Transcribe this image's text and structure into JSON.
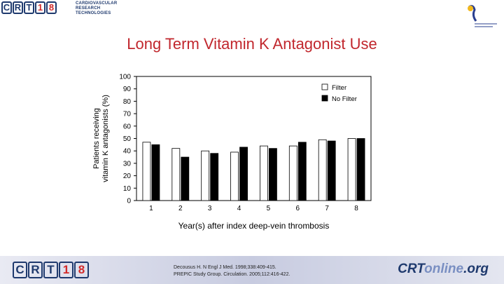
{
  "header": {
    "logo_letters": [
      "C",
      "R",
      "T",
      "1",
      "8"
    ],
    "org_lines": [
      "CARDIOVASCULAR",
      "RESEARCH",
      "TECHNOLOGIES"
    ]
  },
  "slide": {
    "title": "Long Term Vitamin K Antagonist Use"
  },
  "chart_data": {
    "type": "bar",
    "categories": [
      "1",
      "2",
      "3",
      "4",
      "5",
      "6",
      "7",
      "8"
    ],
    "series": [
      {
        "name": "Filter",
        "values": [
          47,
          42,
          40,
          39,
          44,
          44,
          49,
          50
        ]
      },
      {
        "name": "No Filter",
        "values": [
          45,
          35,
          38,
          43,
          42,
          47,
          48,
          50
        ]
      }
    ],
    "colors": {
      "Filter": "#ffffff",
      "No Filter": "#000000"
    },
    "xlabel": "Year(s) after index deep-vein thrombosis",
    "ylabel_lines": [
      "Patients receiving",
      "vitamin K antagonists (%)"
    ],
    "yticks": [
      "0",
      "10",
      "20",
      "30",
      "40",
      "50",
      "60",
      "70",
      "80",
      "90",
      "100"
    ],
    "ylim": [
      0,
      100
    ],
    "legend_position": "top-right",
    "grid": false
  },
  "footer": {
    "logo_letters": [
      "C",
      "R",
      "T",
      "1",
      "8"
    ],
    "refs": [
      "Decousus H. N Engl J Med. 1998;338:409-415.",
      "PREPIC Study Group. Circulation. 2005;112:416-422."
    ],
    "site_main": "CRT",
    "site_on": "online",
    "site_tld": ".org"
  }
}
